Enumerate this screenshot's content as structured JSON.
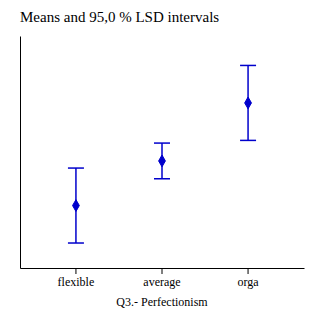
{
  "chart_data": {
    "type": "errorbar",
    "title": "Means and 95,0 % LSD intervals",
    "x_label": "Q3.- Perfectionism",
    "categories": [
      "flexible",
      "average",
      "orga"
    ],
    "values": [
      2.4,
      2.9,
      3.55
    ],
    "errors": [
      0.42,
      0.2,
      0.42
    ],
    "color": "#0000CC",
    "marker": "diamond",
    "ylim": [
      1.7,
      4.3
    ],
    "tick_labels": "x",
    "grid": false
  }
}
